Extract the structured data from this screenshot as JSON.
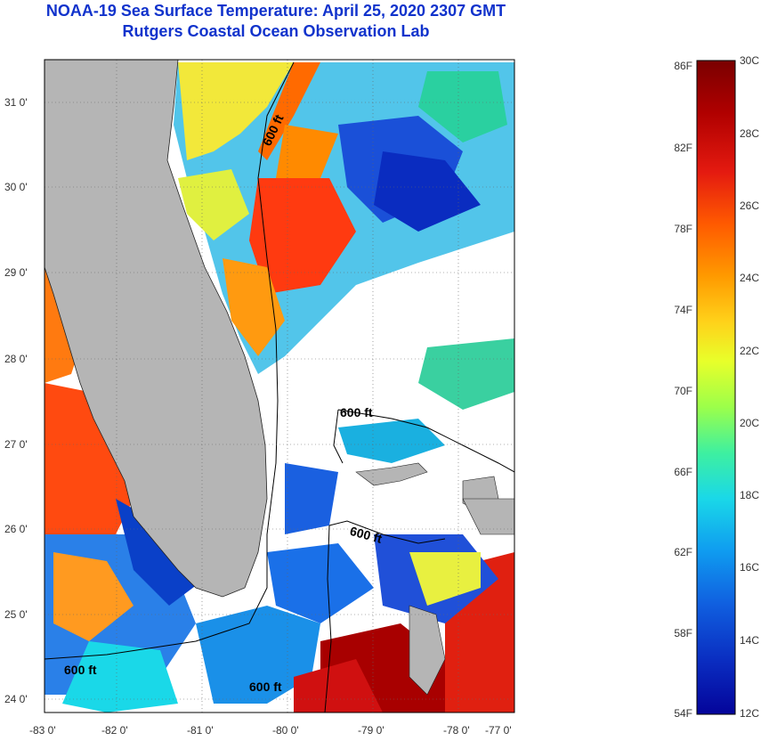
{
  "title_line1": "NOAA-19 Sea Surface Temperature:  April 25, 2020 2307 GMT",
  "title_line2": "Rutgers Coastal Ocean Observation Lab",
  "axes": {
    "lat_ticks": [
      "31 0'",
      "30 0'",
      "29 0'",
      "28 0'",
      "27 0'",
      "26 0'",
      "25 0'",
      "24 0'"
    ],
    "lon_ticks": [
      "-83 0'",
      "-82 0'",
      "-81 0'",
      "-80 0'",
      "-79 0'",
      "-78 0'",
      "-77 0'"
    ]
  },
  "contour_labels": [
    "600 ft",
    "600 ft",
    "600 ft",
    "600 ft",
    "600 ft"
  ],
  "colorbar": {
    "fahrenheit": [
      "86F",
      "82F",
      "78F",
      "74F",
      "70F",
      "66F",
      "62F",
      "58F",
      "54F"
    ],
    "celsius": [
      "30C",
      "28C",
      "26C",
      "24C",
      "22C",
      "20C",
      "18C",
      "16C",
      "14C",
      "12C"
    ],
    "colors": [
      "#7a0000",
      "#b00000",
      "#e41a10",
      "#ff5a00",
      "#ff9a00",
      "#ffd21a",
      "#e8ff2a",
      "#9cff4a",
      "#3ef0a0",
      "#1ad8e8",
      "#0f9cf0",
      "#1060e0",
      "#0a2cc0",
      "#04049a"
    ]
  },
  "colors": {
    "land": "#b5b5b5",
    "cloud": "#ffffff",
    "title": "#1133cc"
  }
}
